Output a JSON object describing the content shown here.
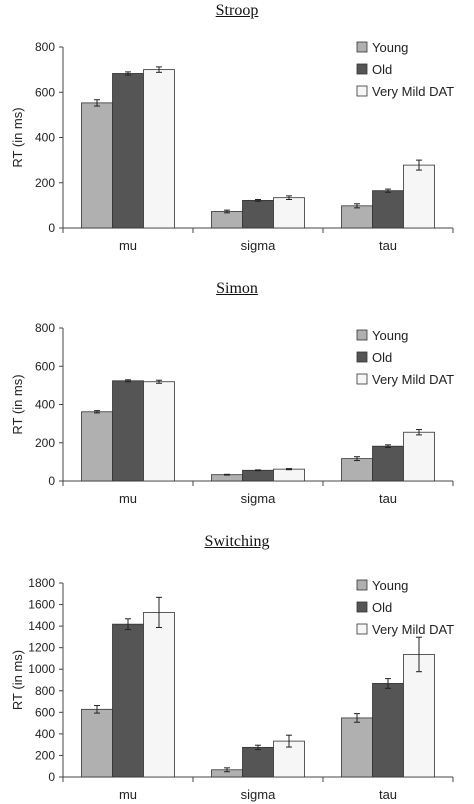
{
  "colors": {
    "young": "#b0b0b0",
    "old": "#555555",
    "dat": "#f6f6f6",
    "axis": "#444444"
  },
  "chart_data": [
    {
      "type": "bar",
      "title": "Stroop",
      "ylabel": "RT (in ms)",
      "categories": [
        "mu",
        "sigma",
        "tau"
      ],
      "ylim": [
        0,
        800
      ],
      "yticks": [
        "0",
        "200",
        "400",
        "600",
        "800"
      ],
      "grid": false,
      "legend": "top-right",
      "series": [
        {
          "name": "Young",
          "values": [
            553,
            73,
            98
          ],
          "errors": [
            14,
            6,
            9
          ]
        },
        {
          "name": "Old",
          "values": [
            683,
            122,
            165
          ],
          "errors": [
            7,
            4,
            7
          ]
        },
        {
          "name": "Very Mild DAT",
          "values": [
            700,
            134,
            278
          ],
          "errors": [
            12,
            8,
            22
          ]
        }
      ]
    },
    {
      "type": "bar",
      "title": "Simon",
      "ylabel": "RT (in ms)",
      "categories": [
        "mu",
        "sigma",
        "tau"
      ],
      "ylim": [
        0,
        800
      ],
      "yticks": [
        "0",
        "200",
        "400",
        "600",
        "800"
      ],
      "grid": false,
      "legend": "top-right",
      "series": [
        {
          "name": "Young",
          "values": [
            362,
            33,
            117
          ],
          "errors": [
            6,
            2,
            10
          ]
        },
        {
          "name": "Old",
          "values": [
            524,
            56,
            182
          ],
          "errors": [
            5,
            2,
            7
          ]
        },
        {
          "name": "Very Mild DAT",
          "values": [
            519,
            62,
            255
          ],
          "errors": [
            8,
            3,
            14
          ]
        }
      ]
    },
    {
      "type": "bar",
      "title": "Switching",
      "ylabel": "RT (in ms)",
      "categories": [
        "mu",
        "sigma",
        "tau"
      ],
      "ylim": [
        0,
        1800
      ],
      "yticks": [
        "0",
        "200",
        "400",
        "600",
        "800",
        "1000",
        "1200",
        "1400",
        "1600",
        "1800"
      ],
      "grid": false,
      "legend": "top-right",
      "series": [
        {
          "name": "Young",
          "values": [
            628,
            67,
            548
          ],
          "errors": [
            35,
            18,
            40
          ]
        },
        {
          "name": "Old",
          "values": [
            1418,
            275,
            868
          ],
          "errors": [
            50,
            20,
            45
          ]
        },
        {
          "name": "Very Mild DAT",
          "values": [
            1527,
            333,
            1137
          ],
          "errors": [
            140,
            55,
            160
          ]
        }
      ]
    }
  ]
}
